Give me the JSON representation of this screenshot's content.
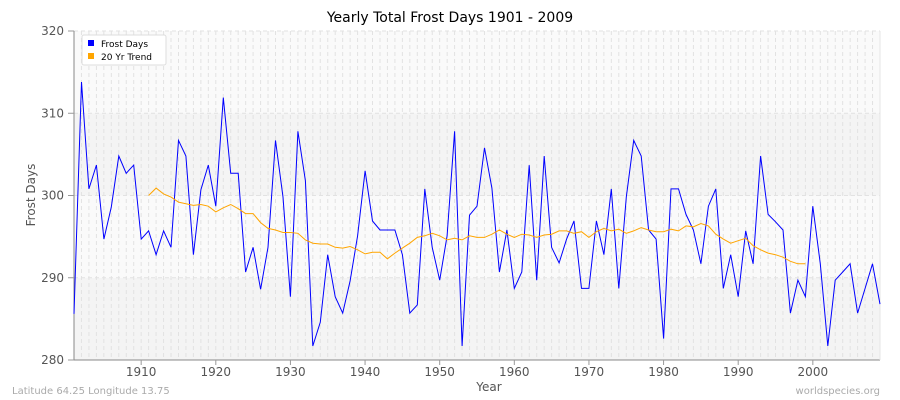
{
  "chart_data": {
    "type": "line",
    "title": "Yearly Total Frost Days 1901 - 2009",
    "xlabel": "Year",
    "ylabel": "Frost Days",
    "xlim": [
      1901,
      2009
    ],
    "ylim": [
      280,
      320
    ],
    "x_ticks": [
      1910,
      1920,
      1930,
      1940,
      1950,
      1960,
      1970,
      1980,
      1990,
      2000
    ],
    "y_ticks": [
      280,
      290,
      300,
      310,
      320
    ],
    "grid": true,
    "legend_position": "top-left",
    "series": [
      {
        "name": "Frost Days",
        "color": "#0000ff",
        "start_year": 1901,
        "values": [
          285.6,
          313.8,
          300.8,
          303.7,
          294.7,
          298.6,
          304.8,
          302.7,
          303.7,
          294.7,
          295.7,
          292.8,
          295.7,
          293.7,
          306.7,
          304.8,
          292.8,
          300.7,
          303.7,
          298.7,
          311.9,
          302.7,
          302.7,
          290.7,
          293.7,
          288.6,
          293.7,
          306.7,
          299.8,
          287.7,
          307.8,
          301.8,
          281.7,
          284.6,
          292.8,
          287.7,
          285.7,
          289.6,
          295.1,
          303.0,
          296.9,
          295.8,
          295.8,
          295.8,
          292.8,
          285.7,
          286.7,
          300.8,
          293.7,
          289.7,
          295.1,
          307.8,
          281.7,
          297.6,
          298.7,
          305.8,
          300.9,
          290.7,
          295.8,
          288.7,
          290.7,
          303.7,
          289.7,
          304.8,
          293.7,
          291.8,
          294.7,
          296.9,
          288.7,
          288.7,
          296.9,
          292.8,
          300.8,
          288.7,
          299.8,
          306.7,
          304.8,
          295.8,
          294.7,
          282.6,
          300.8,
          300.8,
          297.7,
          295.8,
          291.7,
          298.7,
          300.8,
          288.7,
          292.8,
          287.7,
          295.7,
          291.7,
          304.8,
          297.7,
          296.8,
          295.8,
          285.7,
          289.7,
          287.7,
          298.7,
          291.7,
          281.7,
          289.7,
          290.7,
          291.7,
          285.7,
          288.7,
          291.7,
          286.8
        ]
      },
      {
        "name": "20 Yr Trend",
        "color": "#ffa500",
        "start_year": 1911,
        "values": [
          300.0,
          300.9,
          300.2,
          299.8,
          299.2,
          299.0,
          298.8,
          298.9,
          298.7,
          298.0,
          298.5,
          298.9,
          298.4,
          297.8,
          297.8,
          296.7,
          296.0,
          295.8,
          295.5,
          295.5,
          295.4,
          294.6,
          294.2,
          294.1,
          294.1,
          293.7,
          293.6,
          293.8,
          293.4,
          292.9,
          293.1,
          293.1,
          292.3,
          293.0,
          293.6,
          294.2,
          294.9,
          295.1,
          295.4,
          295.1,
          294.6,
          294.8,
          294.6,
          295.1,
          294.9,
          294.9,
          295.3,
          295.8,
          295.3,
          294.9,
          295.3,
          295.2,
          294.9,
          295.2,
          295.3,
          295.7,
          295.7,
          295.4,
          295.6,
          294.9,
          295.6,
          296.0,
          295.7,
          295.9,
          295.4,
          295.7,
          296.1,
          295.8,
          295.6,
          295.6,
          295.9,
          295.7,
          296.3,
          296.2,
          296.6,
          296.3,
          295.3,
          294.7,
          294.2,
          294.5,
          294.8,
          293.9,
          293.4,
          293.0,
          292.8,
          292.5,
          292.0,
          291.7,
          291.7
        ]
      }
    ]
  },
  "footer": {
    "location": "Latitude 64.25 Longitude 13.75",
    "site": "worldspecies.org"
  }
}
